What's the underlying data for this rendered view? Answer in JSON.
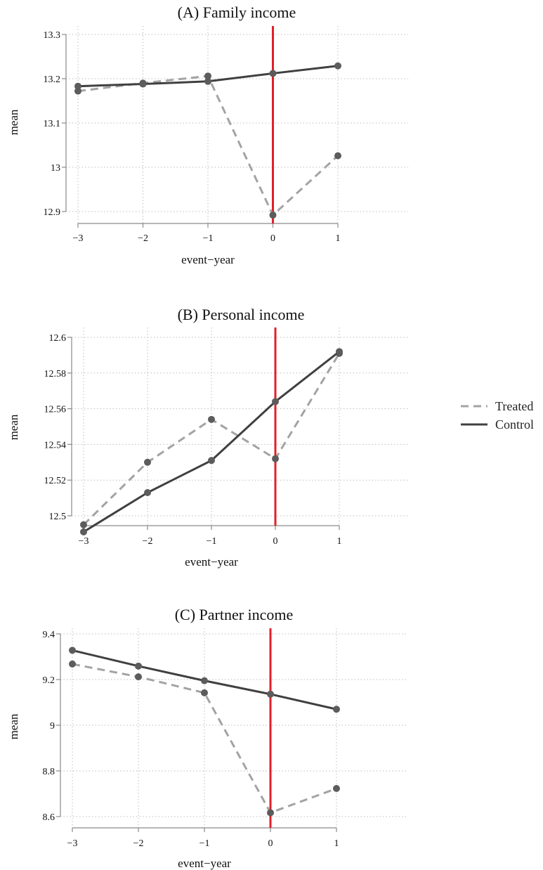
{
  "chart_data": [
    {
      "type": "line",
      "title": "(A) Family income",
      "xlabel": "event−year",
      "ylabel": "mean",
      "x": [
        -3,
        -2,
        -1,
        0,
        1
      ],
      "x_tick_labels": [
        "−3",
        "−2",
        "−1",
        "0",
        "1"
      ],
      "ylim": [
        12.9,
        13.3
      ],
      "y_ticks": [
        12.9,
        13.0,
        13.1,
        13.2,
        13.3
      ],
      "y_tick_labels": [
        "12.9",
        "13",
        "13.1",
        "13.2",
        "13.3"
      ],
      "event_line_x": 0,
      "series": [
        {
          "name": "Treated",
          "values": [
            13.172,
            13.19,
            13.206,
            12.892,
            13.026
          ]
        },
        {
          "name": "Control",
          "values": [
            13.183,
            13.188,
            13.194,
            13.212,
            13.229
          ]
        }
      ]
    },
    {
      "type": "line",
      "title": "(B) Personal income",
      "xlabel": "event−year",
      "ylabel": "mean",
      "x": [
        -3,
        -2,
        -1,
        0,
        1
      ],
      "x_tick_labels": [
        "−3",
        "−2",
        "−1",
        "0",
        "1"
      ],
      "ylim": [
        12.49,
        12.6
      ],
      "y_ticks": [
        12.5,
        12.52,
        12.54,
        12.56,
        12.58,
        12.6
      ],
      "y_tick_labels": [
        "12.5",
        "12.52",
        "12.54",
        "12.56",
        "12.58",
        "12.6"
      ],
      "event_line_x": 0,
      "series": [
        {
          "name": "Treated",
          "values": [
            12.495,
            12.53,
            12.554,
            12.532,
            12.591
          ]
        },
        {
          "name": "Control",
          "values": [
            12.491,
            12.513,
            12.531,
            12.564,
            12.592
          ]
        }
      ]
    },
    {
      "type": "line",
      "title": "(C) Partner income",
      "xlabel": "event−year",
      "ylabel": "mean",
      "x": [
        -3,
        -2,
        -1,
        0,
        1
      ],
      "x_tick_labels": [
        "−3",
        "−2",
        "−1",
        "0",
        "1"
      ],
      "ylim": [
        8.6,
        9.4
      ],
      "y_ticks": [
        8.6,
        8.8,
        9.0,
        9.2,
        9.4
      ],
      "y_tick_labels": [
        "8.6",
        "8.8",
        "9",
        "9.2",
        "9.4"
      ],
      "event_line_x": 0,
      "series": [
        {
          "name": "Treated",
          "values": [
            9.268,
            9.212,
            9.142,
            8.617,
            8.723
          ]
        },
        {
          "name": "Control",
          "values": [
            9.328,
            9.259,
            9.195,
            9.136,
            9.07
          ]
        }
      ]
    }
  ],
  "legend": {
    "placement": "right",
    "items": [
      {
        "name": "Treated",
        "style": "dashed"
      },
      {
        "name": "Control",
        "style": "solid"
      }
    ]
  },
  "colors": {
    "treated": "#a3a3a3",
    "control": "#404040",
    "marker": "#5c5c5c",
    "event_line": "#e0202a",
    "grid": "#bdbdbd",
    "axis": "#8a8a8a"
  }
}
